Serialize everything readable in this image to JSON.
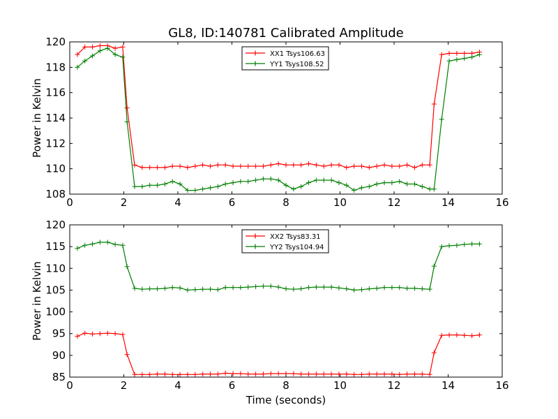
{
  "chart_data": [
    {
      "type": "line",
      "title": "GL8, ID:140781 Calibrated Amplitude",
      "xlabel": "",
      "ylabel": "Power in Kelvin",
      "xlim": [
        0,
        16
      ],
      "ylim": [
        108,
        120
      ],
      "xticks": [
        "0",
        "2",
        "4",
        "6",
        "8",
        "10",
        "12",
        "14",
        "16"
      ],
      "yticks": [
        "108",
        "110",
        "112",
        "114",
        "116",
        "118",
        "120"
      ],
      "legend_position": "top-center",
      "x": [
        0.28,
        0.56,
        0.84,
        1.12,
        1.4,
        1.68,
        1.96,
        2.12,
        2.4,
        2.68,
        2.96,
        3.24,
        3.52,
        3.8,
        4.08,
        4.36,
        4.64,
        4.92,
        5.2,
        5.48,
        5.76,
        6.04,
        6.32,
        6.6,
        6.88,
        7.16,
        7.44,
        7.72,
        8.0,
        8.28,
        8.56,
        8.84,
        9.12,
        9.4,
        9.68,
        9.96,
        10.24,
        10.52,
        10.8,
        11.08,
        11.36,
        11.64,
        11.92,
        12.2,
        12.48,
        12.76,
        13.04,
        13.32,
        13.48,
        13.76,
        14.04,
        14.32,
        14.6,
        14.88,
        15.16
      ],
      "series": [
        {
          "name": "XX1 Tsys106.63",
          "color": "#ff0000",
          "values": [
            119.0,
            119.6,
            119.6,
            119.7,
            119.7,
            119.5,
            119.6,
            114.8,
            110.3,
            110.1,
            110.1,
            110.1,
            110.1,
            110.2,
            110.2,
            110.1,
            110.2,
            110.3,
            110.2,
            110.3,
            110.3,
            110.2,
            110.2,
            110.2,
            110.2,
            110.2,
            110.3,
            110.4,
            110.3,
            110.3,
            110.3,
            110.4,
            110.3,
            110.2,
            110.3,
            110.3,
            110.1,
            110.2,
            110.2,
            110.1,
            110.2,
            110.3,
            110.2,
            110.2,
            110.3,
            110.1,
            110.3,
            110.3,
            115.1,
            119.0,
            119.1,
            119.1,
            119.1,
            119.1,
            119.2
          ]
        },
        {
          "name": "YY1 Tsys108.52",
          "color": "#007f00",
          "values": [
            118.0,
            118.5,
            118.9,
            119.3,
            119.5,
            119.0,
            118.8,
            113.7,
            108.6,
            108.6,
            108.7,
            108.7,
            108.8,
            109.0,
            108.8,
            108.3,
            108.3,
            108.4,
            108.5,
            108.6,
            108.8,
            108.9,
            109.0,
            109.0,
            109.1,
            109.2,
            109.2,
            109.1,
            108.7,
            108.4,
            108.6,
            108.9,
            109.1,
            109.1,
            109.1,
            108.9,
            108.7,
            108.3,
            108.5,
            108.6,
            108.8,
            108.9,
            108.9,
            109.0,
            108.8,
            108.8,
            108.6,
            108.4,
            108.4,
            113.9,
            118.5,
            118.6,
            118.7,
            118.8,
            119.0
          ]
        }
      ]
    },
    {
      "type": "line",
      "title": "",
      "xlabel": "Time (seconds)",
      "ylabel": "Power in Kelvin",
      "xlim": [
        0,
        16
      ],
      "ylim": [
        85,
        120
      ],
      "xticks": [
        "0",
        "2",
        "4",
        "6",
        "8",
        "10",
        "12",
        "14",
        "16"
      ],
      "yticks": [
        "85",
        "90",
        "95",
        "100",
        "105",
        "110",
        "115",
        "120"
      ],
      "legend_position": "top-center",
      "x": [
        0.28,
        0.56,
        0.84,
        1.12,
        1.4,
        1.68,
        1.96,
        2.12,
        2.4,
        2.68,
        2.96,
        3.24,
        3.52,
        3.8,
        4.08,
        4.36,
        4.64,
        4.92,
        5.2,
        5.48,
        5.76,
        6.04,
        6.32,
        6.6,
        6.88,
        7.16,
        7.44,
        7.72,
        8.0,
        8.28,
        8.56,
        8.84,
        9.12,
        9.4,
        9.68,
        9.96,
        10.24,
        10.52,
        10.8,
        11.08,
        11.36,
        11.64,
        11.92,
        12.2,
        12.48,
        12.76,
        13.04,
        13.32,
        13.48,
        13.76,
        14.04,
        14.32,
        14.6,
        14.88,
        15.16
      ],
      "series": [
        {
          "name": "XX2 Tsys83.31",
          "color": "#ff0000",
          "values": [
            94.4,
            95.1,
            94.9,
            95.0,
            95.1,
            95.0,
            94.8,
            90.2,
            85.6,
            85.6,
            85.6,
            85.7,
            85.7,
            85.6,
            85.6,
            85.6,
            85.6,
            85.7,
            85.7,
            85.7,
            85.9,
            85.8,
            85.8,
            85.7,
            85.7,
            85.7,
            85.8,
            85.8,
            85.8,
            85.8,
            85.7,
            85.7,
            85.7,
            85.7,
            85.7,
            85.7,
            85.7,
            85.6,
            85.6,
            85.7,
            85.7,
            85.7,
            85.7,
            85.6,
            85.7,
            85.7,
            85.7,
            85.6,
            90.6,
            94.6,
            94.7,
            94.7,
            94.6,
            94.5,
            94.7
          ]
        },
        {
          "name": "YY2 Tsys104.94",
          "color": "#007f00",
          "values": [
            114.6,
            115.3,
            115.6,
            116.0,
            116.0,
            115.5,
            115.3,
            110.4,
            105.4,
            105.2,
            105.3,
            105.3,
            105.4,
            105.6,
            105.5,
            105.0,
            105.1,
            105.2,
            105.2,
            105.1,
            105.6,
            105.6,
            105.6,
            105.7,
            105.8,
            105.9,
            105.9,
            105.7,
            105.3,
            105.2,
            105.3,
            105.6,
            105.7,
            105.7,
            105.7,
            105.5,
            105.3,
            105.0,
            105.1,
            105.3,
            105.4,
            105.6,
            105.6,
            105.6,
            105.4,
            105.4,
            105.3,
            105.2,
            110.5,
            115.0,
            115.2,
            115.3,
            115.5,
            115.6,
            115.6
          ]
        }
      ]
    }
  ]
}
